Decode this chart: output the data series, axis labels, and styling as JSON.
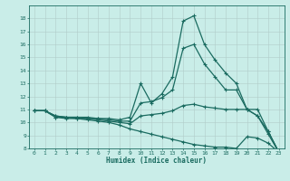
{
  "xlabel": "Humidex (Indice chaleur)",
  "xlim": [
    -0.5,
    23.5
  ],
  "ylim": [
    8,
    19
  ],
  "yticks": [
    8,
    9,
    10,
    11,
    12,
    13,
    14,
    15,
    16,
    17,
    18
  ],
  "xticks": [
    0,
    1,
    2,
    3,
    4,
    5,
    6,
    7,
    8,
    9,
    10,
    11,
    12,
    13,
    14,
    15,
    16,
    17,
    18,
    19,
    20,
    21,
    22,
    23
  ],
  "background_color": "#c9ede8",
  "line_color": "#1a6b60",
  "grid_color": "#b0ccc8",
  "line1_x": [
    0,
    1,
    2,
    3,
    4,
    5,
    6,
    7,
    8,
    9,
    10,
    11,
    12,
    13,
    14,
    15,
    16,
    17,
    18,
    19,
    20,
    21,
    22,
    23
  ],
  "line1_y": [
    10.9,
    10.9,
    10.5,
    10.4,
    10.4,
    10.4,
    10.3,
    10.3,
    10.2,
    10.4,
    13.0,
    11.5,
    12.2,
    13.5,
    17.8,
    18.2,
    16.0,
    14.8,
    13.8,
    13.0,
    11.0,
    11.0,
    9.3,
    7.7
  ],
  "line2_x": [
    0,
    1,
    2,
    3,
    4,
    5,
    6,
    7,
    8,
    9,
    10,
    11,
    12,
    13,
    14,
    15,
    16,
    17,
    18,
    19,
    20,
    21,
    22,
    23
  ],
  "line2_y": [
    10.9,
    10.9,
    10.5,
    10.4,
    10.4,
    10.3,
    10.3,
    10.2,
    10.1,
    10.1,
    11.5,
    11.6,
    11.9,
    12.5,
    15.7,
    16.0,
    14.5,
    13.5,
    12.5,
    12.5,
    11.0,
    10.5,
    9.1,
    7.7
  ],
  "line3_x": [
    0,
    1,
    2,
    3,
    4,
    5,
    6,
    7,
    8,
    9,
    10,
    11,
    12,
    13,
    14,
    15,
    16,
    17,
    18,
    19,
    20,
    21,
    22,
    23
  ],
  "line3_y": [
    10.9,
    10.9,
    10.4,
    10.4,
    10.3,
    10.3,
    10.2,
    10.1,
    10.0,
    9.9,
    10.5,
    10.6,
    10.7,
    10.9,
    11.3,
    11.4,
    11.2,
    11.1,
    11.0,
    11.0,
    11.0,
    10.5,
    9.3,
    7.7
  ],
  "line4_x": [
    0,
    1,
    2,
    3,
    4,
    5,
    6,
    7,
    8,
    9,
    10,
    11,
    12,
    13,
    14,
    15,
    16,
    17,
    18,
    19,
    20,
    21,
    22,
    23
  ],
  "line4_y": [
    10.9,
    10.9,
    10.4,
    10.3,
    10.3,
    10.2,
    10.1,
    10.0,
    9.8,
    9.5,
    9.3,
    9.1,
    8.9,
    8.7,
    8.5,
    8.3,
    8.2,
    8.1,
    8.1,
    8.0,
    8.9,
    8.8,
    8.4,
    7.7
  ]
}
